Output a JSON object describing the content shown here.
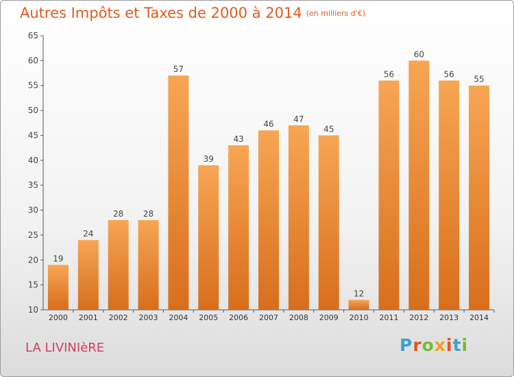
{
  "header": {
    "title": "Autres Impôts et Taxes de 2000 à 2014",
    "unit": "(en milliers d'€)"
  },
  "footer": {
    "commune": "LA LIVINIèRE",
    "logo": "Proxiti"
  },
  "colors": {
    "title": "#e05a1e",
    "commune": "#d23c64",
    "bar_light": "#f7a654",
    "bar_dark": "#d86e1c",
    "logo_letters": [
      "#3ca0d2",
      "#e0541e",
      "#7ab834",
      "#f3a11e",
      "#e0541e",
      "#3ca0d2",
      "#7ab834"
    ]
  },
  "chart_data": {
    "type": "bar",
    "title": "Autres Impôts et Taxes de 2000 à 2014",
    "subtitle": "(en milliers d'€)",
    "xlabel": "",
    "ylabel": "",
    "categories": [
      "2000",
      "2001",
      "2002",
      "2003",
      "2004",
      "2005",
      "2006",
      "2007",
      "2008",
      "2009",
      "2010",
      "2011",
      "2012",
      "2013",
      "2014"
    ],
    "values": [
      19,
      24,
      28,
      28,
      57,
      39,
      43,
      46,
      47,
      45,
      12,
      56,
      60,
      56,
      55
    ],
    "ylim": [
      10,
      65
    ],
    "yticks": [
      10,
      15,
      20,
      25,
      30,
      35,
      40,
      45,
      50,
      55,
      60,
      65
    ],
    "grid": false,
    "data_labels": true
  }
}
